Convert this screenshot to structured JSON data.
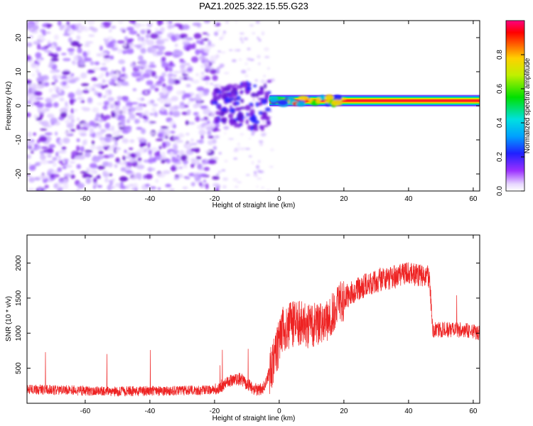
{
  "title": "PAZ1.2025.322.15.55.G23",
  "colors": {
    "signal": "#ee2222",
    "noise": "#8a2be2",
    "background": "#ffffff",
    "axis": "#000000"
  },
  "chart_data": [
    {
      "type": "heatmap",
      "xlabel": "Height of straight line (km)",
      "ylabel": "Frequency (Hz)",
      "xlim": [
        -78,
        62
      ],
      "ylim": [
        -25,
        25
      ],
      "x_ticks": [
        "-60",
        "-40",
        "-20",
        "0",
        "20",
        "40",
        "60"
      ],
      "y_ticks": [
        "-20",
        "-10",
        "0",
        "10",
        "20"
      ],
      "colorbar": {
        "label": "Normalized spectral amplitude",
        "range": [
          0,
          1
        ],
        "ticks": [
          "0.0",
          "0.2",
          "0.4",
          "0.6",
          "0.8"
        ]
      },
      "regions": [
        {
          "name": "noise",
          "x_range": [
            -78,
            -20
          ],
          "freq_range": [
            -25,
            25
          ],
          "amplitude": 0.05
        },
        {
          "name": "transition",
          "x_range": [
            -20,
            -3
          ],
          "freq_range": [
            -5,
            5
          ],
          "amplitude": 0.15
        },
        {
          "name": "tone",
          "x_range": [
            -3,
            62
          ],
          "center_freq": 1.5,
          "width": 2.5,
          "peak_amplitude": 1.0
        }
      ]
    },
    {
      "type": "line",
      "xlabel": "Height of straight line (km)",
      "ylabel": "SNR (10 * v/v)",
      "xlim": [
        -78,
        62
      ],
      "ylim": [
        0,
        2400
      ],
      "x_ticks": [
        "-60",
        "-40",
        "-20",
        "0",
        "20",
        "40",
        "60"
      ],
      "y_ticks": [
        "500",
        "1000",
        "1500",
        "2000"
      ],
      "series": [
        {
          "x": [
            -78,
            -70,
            -60,
            -50,
            -40,
            -30,
            -20,
            -15,
            -12,
            -8,
            -5,
            -3,
            -1,
            1,
            5,
            10,
            15,
            20,
            25,
            30,
            35,
            40,
            45,
            46.5,
            47.5,
            50,
            55,
            60,
            62
          ],
          "y": [
            200,
            190,
            180,
            170,
            175,
            180,
            190,
            320,
            350,
            200,
            200,
            450,
            700,
            1050,
            1150,
            1100,
            1150,
            1500,
            1650,
            1750,
            1800,
            1850,
            1800,
            1800,
            1050,
            1050,
            1050,
            1020,
            1000
          ]
        }
      ]
    }
  ]
}
